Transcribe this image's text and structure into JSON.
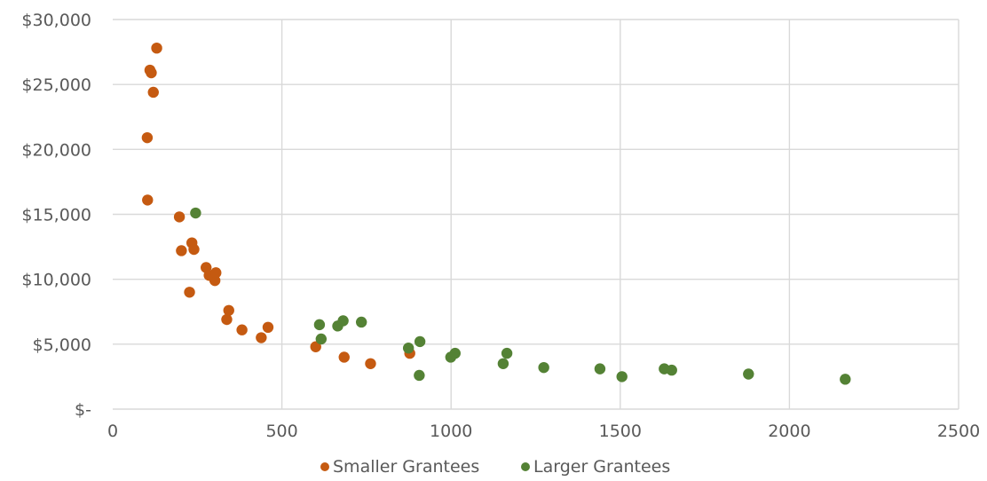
{
  "chart_data": {
    "type": "scatter",
    "title": "",
    "xlabel": "",
    "ylabel": "",
    "xlim": [
      0,
      2500
    ],
    "ylim": [
      0,
      30000
    ],
    "x_ticks": [
      0,
      500,
      1000,
      1500,
      2000,
      2500
    ],
    "x_tick_labels": [
      "0",
      "500",
      "1000",
      "1500",
      "2000",
      "2500"
    ],
    "y_ticks": [
      0,
      5000,
      10000,
      15000,
      20000,
      25000,
      30000
    ],
    "y_tick_labels": [
      "$-",
      "$5,000",
      "$10,000",
      "$15,000",
      "$20,000",
      "$25,000",
      "$30,000"
    ],
    "grid": "major (both axes)",
    "legend": "bottom-center",
    "series": [
      {
        "name": "Smaller Grantees",
        "color": "#c55a11",
        "points": [
          {
            "x": 102,
            "y": 20900
          },
          {
            "x": 103,
            "y": 16100
          },
          {
            "x": 110,
            "y": 26100
          },
          {
            "x": 114,
            "y": 25900
          },
          {
            "x": 120,
            "y": 24400
          },
          {
            "x": 130,
            "y": 27800
          },
          {
            "x": 197,
            "y": 14800
          },
          {
            "x": 203,
            "y": 12200
          },
          {
            "x": 227,
            "y": 9000
          },
          {
            "x": 234,
            "y": 12800
          },
          {
            "x": 240,
            "y": 12300
          },
          {
            "x": 276,
            "y": 10900
          },
          {
            "x": 285,
            "y": 10300
          },
          {
            "x": 302,
            "y": 9900
          },
          {
            "x": 305,
            "y": 10500
          },
          {
            "x": 337,
            "y": 6900
          },
          {
            "x": 343,
            "y": 7600
          },
          {
            "x": 382,
            "y": 6100
          },
          {
            "x": 439,
            "y": 5500
          },
          {
            "x": 459,
            "y": 6300
          },
          {
            "x": 600,
            "y": 4800
          },
          {
            "x": 684,
            "y": 4000
          },
          {
            "x": 762,
            "y": 3500
          },
          {
            "x": 878,
            "y": 4300
          }
        ]
      },
      {
        "name": "Larger Grantees",
        "color": "#548235",
        "points": [
          {
            "x": 245,
            "y": 15100
          },
          {
            "x": 611,
            "y": 6500
          },
          {
            "x": 616,
            "y": 5400
          },
          {
            "x": 665,
            "y": 6400
          },
          {
            "x": 681,
            "y": 6800
          },
          {
            "x": 735,
            "y": 6700
          },
          {
            "x": 874,
            "y": 4700
          },
          {
            "x": 906,
            "y": 2600
          },
          {
            "x": 908,
            "y": 5200
          },
          {
            "x": 999,
            "y": 4000
          },
          {
            "x": 1012,
            "y": 4300
          },
          {
            "x": 1154,
            "y": 3500
          },
          {
            "x": 1165,
            "y": 4300
          },
          {
            "x": 1274,
            "y": 3200
          },
          {
            "x": 1440,
            "y": 3100
          },
          {
            "x": 1505,
            "y": 2500
          },
          {
            "x": 1630,
            "y": 3100
          },
          {
            "x": 1652,
            "y": 3000
          },
          {
            "x": 1879,
            "y": 2700
          },
          {
            "x": 2165,
            "y": 2300
          }
        ]
      }
    ]
  }
}
